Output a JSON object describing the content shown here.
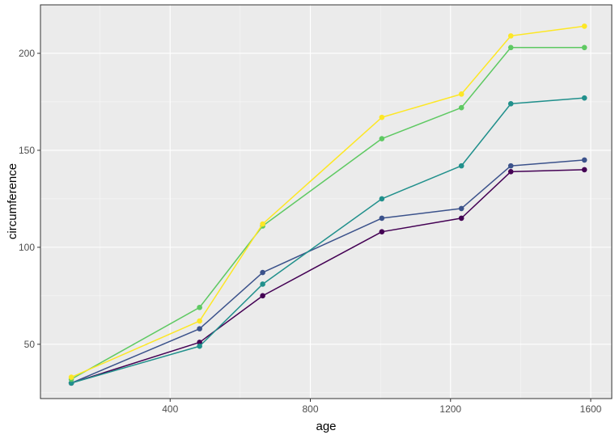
{
  "chart_data": {
    "type": "line",
    "xlabel": "age",
    "ylabel": "circumference",
    "xlim": [
      30,
      1660
    ],
    "ylim": [
      22,
      225
    ],
    "x_ticks": [
      400,
      800,
      1200,
      1600
    ],
    "y_ticks": [
      50,
      100,
      150,
      200
    ],
    "grid": true,
    "legend": "none",
    "x": [
      118,
      484,
      664,
      1004,
      1231,
      1372,
      1582
    ],
    "series": [
      {
        "color": "#440154",
        "values": [
          30,
          51,
          75,
          108,
          115,
          139,
          140
        ]
      },
      {
        "color": "#3b528b",
        "values": [
          30,
          58,
          87,
          115,
          120,
          142,
          145
        ]
      },
      {
        "color": "#21908c",
        "values": [
          30,
          49,
          81,
          125,
          142,
          174,
          177
        ]
      },
      {
        "color": "#5ec962",
        "values": [
          32,
          69,
          111,
          156,
          172,
          203,
          203
        ]
      },
      {
        "color": "#fde725",
        "values": [
          33,
          62,
          112,
          167,
          179,
          209,
          214
        ]
      }
    ]
  }
}
